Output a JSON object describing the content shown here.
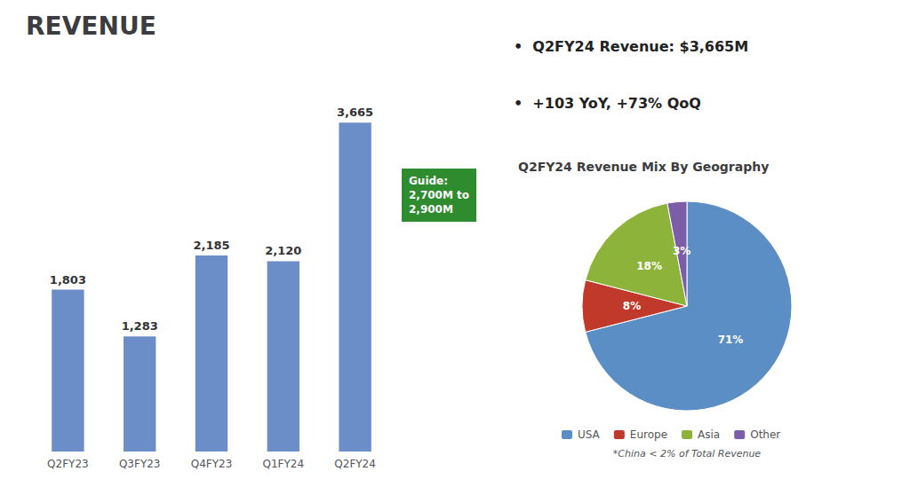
{
  "chart_data": [
    {
      "type": "bar",
      "title": "REVENUE",
      "categories": [
        "Q2FY23",
        "Q3FY23",
        "Q4FY23",
        "Q1FY24",
        "Q2FY24"
      ],
      "values": [
        1803,
        1283,
        2185,
        2120,
        3665
      ],
      "value_labels": [
        "1,803",
        "1,283",
        "2,185",
        "2,120",
        "3,665"
      ],
      "data_labels": true,
      "color": "#6b8ec9",
      "ylim": [
        0,
        4200
      ],
      "grid": false,
      "tick_labels": "x",
      "annotations": [
        {
          "text": "Guide:\n2,700M to\n2,900M",
          "color": "#2e8b2e"
        },
        {
          "text": "•  Q2FY24 Revenue: $3,665M"
        },
        {
          "text": "•  +103 YoY, +73% QoQ"
        }
      ]
    },
    {
      "type": "pie",
      "title": "Q2FY24 Revenue Mix By Geography",
      "categories": [
        "USA",
        "Europe",
        "Asia",
        "Other"
      ],
      "values": [
        71,
        8,
        18,
        3
      ],
      "value_labels": [
        "71%",
        "8%",
        "18%",
        "3%"
      ],
      "data_labels": true,
      "colors": [
        "#5b8ec4",
        "#c0392b",
        "#8db33a",
        "#7b5ea7"
      ],
      "legend": "bottom",
      "annotations": [
        {
          "text": "*China < 2% of Total Revenue"
        }
      ]
    }
  ]
}
